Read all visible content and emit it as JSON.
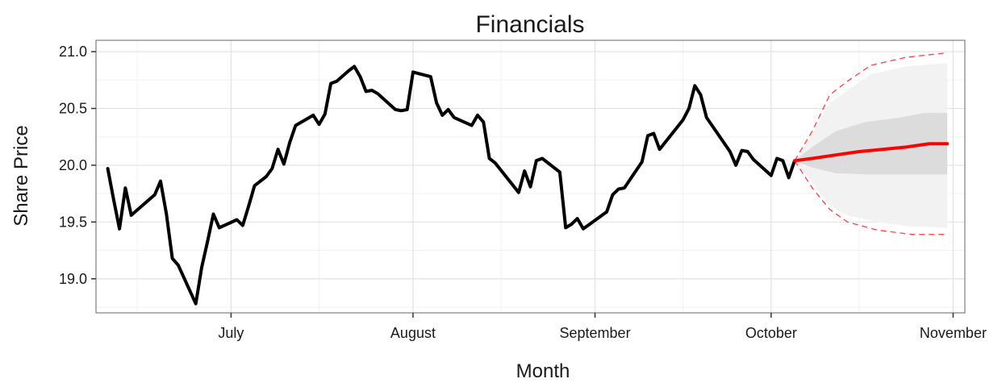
{
  "chart_data": {
    "type": "line",
    "title": "Financials",
    "xlabel": "Month",
    "ylabel": "Share Price",
    "ylim": [
      18.7,
      21.1
    ],
    "xlim": [
      "2015-06-08",
      "2015-11-03"
    ],
    "grid": true,
    "x_ticks": [
      {
        "date": "2015-07-01",
        "label": "July"
      },
      {
        "date": "2015-08-01",
        "label": "August"
      },
      {
        "date": "2015-09-01",
        "label": "September"
      },
      {
        "date": "2015-10-01",
        "label": "October"
      },
      {
        "date": "2015-11-01",
        "label": "November"
      }
    ],
    "y_ticks": [
      19.0,
      19.5,
      20.0,
      20.5,
      21.0
    ],
    "y_tick_labels": [
      "19.0",
      "19.5",
      "20.0",
      "20.5",
      "21.0"
    ],
    "series": [
      {
        "role": "history",
        "color": "#000000",
        "points": [
          [
            "2015-06-10",
            19.97
          ],
          [
            "2015-06-11",
            19.7
          ],
          [
            "2015-06-12",
            19.44
          ],
          [
            "2015-06-13",
            19.8
          ],
          [
            "2015-06-14",
            19.56
          ],
          [
            "2015-06-18",
            19.74
          ],
          [
            "2015-06-19",
            19.86
          ],
          [
            "2015-06-20",
            19.57
          ],
          [
            "2015-06-21",
            19.18
          ],
          [
            "2015-06-22",
            19.12
          ],
          [
            "2015-06-25",
            18.78
          ],
          [
            "2015-06-26",
            19.1
          ],
          [
            "2015-06-27",
            19.33
          ],
          [
            "2015-06-28",
            19.57
          ],
          [
            "2015-06-29",
            19.45
          ],
          [
            "2015-07-02",
            19.52
          ],
          [
            "2015-07-03",
            19.47
          ],
          [
            "2015-07-04",
            19.64
          ],
          [
            "2015-07-05",
            19.82
          ],
          [
            "2015-07-07",
            19.9
          ],
          [
            "2015-07-08",
            19.97
          ],
          [
            "2015-07-09",
            20.14
          ],
          [
            "2015-07-10",
            20.01
          ],
          [
            "2015-07-11",
            20.2
          ],
          [
            "2015-07-12",
            20.35
          ],
          [
            "2015-07-15",
            20.44
          ],
          [
            "2015-07-16",
            20.36
          ],
          [
            "2015-07-17",
            20.45
          ],
          [
            "2015-07-18",
            20.72
          ],
          [
            "2015-07-19",
            20.74
          ],
          [
            "2015-07-21",
            20.83
          ],
          [
            "2015-07-22",
            20.87
          ],
          [
            "2015-07-23",
            20.78
          ],
          [
            "2015-07-24",
            20.65
          ],
          [
            "2015-07-25",
            20.66
          ],
          [
            "2015-07-26",
            20.63
          ],
          [
            "2015-07-29",
            20.49
          ],
          [
            "2015-07-30",
            20.48
          ],
          [
            "2015-07-31",
            20.49
          ],
          [
            "2015-08-01",
            20.82
          ],
          [
            "2015-08-04",
            20.78
          ],
          [
            "2015-08-05",
            20.55
          ],
          [
            "2015-08-06",
            20.44
          ],
          [
            "2015-08-07",
            20.49
          ],
          [
            "2015-08-08",
            20.42
          ],
          [
            "2015-08-11",
            20.35
          ],
          [
            "2015-08-12",
            20.44
          ],
          [
            "2015-08-13",
            20.38
          ],
          [
            "2015-08-14",
            20.06
          ],
          [
            "2015-08-15",
            20.02
          ],
          [
            "2015-08-19",
            19.76
          ],
          [
            "2015-08-20",
            19.95
          ],
          [
            "2015-08-21",
            19.81
          ],
          [
            "2015-08-22",
            20.04
          ],
          [
            "2015-08-23",
            20.06
          ],
          [
            "2015-08-26",
            19.94
          ],
          [
            "2015-08-27",
            19.45
          ],
          [
            "2015-08-28",
            19.48
          ],
          [
            "2015-08-29",
            19.53
          ],
          [
            "2015-08-30",
            19.44
          ],
          [
            "2015-09-03",
            19.59
          ],
          [
            "2015-09-04",
            19.74
          ],
          [
            "2015-09-05",
            19.79
          ],
          [
            "2015-09-06",
            19.8
          ],
          [
            "2015-09-09",
            20.03
          ],
          [
            "2015-09-10",
            20.26
          ],
          [
            "2015-09-11",
            20.28
          ],
          [
            "2015-09-12",
            20.14
          ],
          [
            "2015-09-16",
            20.4
          ],
          [
            "2015-09-17",
            20.5
          ],
          [
            "2015-09-18",
            20.7
          ],
          [
            "2015-09-19",
            20.62
          ],
          [
            "2015-09-20",
            20.42
          ],
          [
            "2015-09-24",
            20.12
          ],
          [
            "2015-09-25",
            20.0
          ],
          [
            "2015-09-26",
            20.13
          ],
          [
            "2015-09-27",
            20.12
          ],
          [
            "2015-09-28",
            20.05
          ],
          [
            "2015-10-01",
            19.91
          ],
          [
            "2015-10-02",
            20.06
          ],
          [
            "2015-10-03",
            20.04
          ],
          [
            "2015-10-04",
            19.89
          ],
          [
            "2015-10-05",
            20.04
          ]
        ]
      },
      {
        "role": "forecast-mean",
        "color": "#ff0000",
        "points": [
          [
            "2015-10-05",
            20.04
          ],
          [
            "2015-10-08",
            20.06
          ],
          [
            "2015-10-12",
            20.09
          ],
          [
            "2015-10-16",
            20.12
          ],
          [
            "2015-10-20",
            20.14
          ],
          [
            "2015-10-24",
            20.16
          ],
          [
            "2015-10-28",
            20.19
          ],
          [
            "2015-10-31",
            20.19
          ]
        ]
      },
      {
        "role": "forecast-bounds",
        "color": "#ff4040",
        "upper": [
          [
            "2015-10-05",
            20.04
          ],
          [
            "2015-10-08",
            20.3
          ],
          [
            "2015-10-11",
            20.62
          ],
          [
            "2015-10-14",
            20.74
          ],
          [
            "2015-10-18",
            20.88
          ],
          [
            "2015-10-24",
            20.95
          ],
          [
            "2015-10-31",
            20.99
          ]
        ],
        "lower": [
          [
            "2015-10-05",
            20.04
          ],
          [
            "2015-10-08",
            19.8
          ],
          [
            "2015-10-11",
            19.61
          ],
          [
            "2015-10-14",
            19.5
          ],
          [
            "2015-10-19",
            19.43
          ],
          [
            "2015-10-25",
            19.39
          ],
          [
            "2015-10-31",
            19.39
          ]
        ]
      }
    ],
    "bands": [
      {
        "role": "outer",
        "color": "#f2f2f2",
        "upper": [
          [
            "2015-10-05",
            20.04
          ],
          [
            "2015-10-08",
            20.28
          ],
          [
            "2015-10-11",
            20.55
          ],
          [
            "2015-10-14",
            20.66
          ],
          [
            "2015-10-18",
            20.8
          ],
          [
            "2015-10-24",
            20.87
          ],
          [
            "2015-10-31",
            20.9
          ]
        ],
        "lower": [
          [
            "2015-10-05",
            20.04
          ],
          [
            "2015-10-08",
            19.85
          ],
          [
            "2015-10-11",
            19.64
          ],
          [
            "2015-10-14",
            19.56
          ],
          [
            "2015-10-19",
            19.5
          ],
          [
            "2015-10-25",
            19.46
          ],
          [
            "2015-10-31",
            19.45
          ]
        ]
      },
      {
        "role": "inner",
        "color": "#dcdcdc",
        "upper": [
          [
            "2015-10-05",
            20.04
          ],
          [
            "2015-10-08",
            20.16
          ],
          [
            "2015-10-12",
            20.3
          ],
          [
            "2015-10-17",
            20.38
          ],
          [
            "2015-10-23",
            20.42
          ],
          [
            "2015-10-27",
            20.46
          ],
          [
            "2015-10-31",
            20.46
          ]
        ],
        "lower": [
          [
            "2015-10-05",
            20.04
          ],
          [
            "2015-10-08",
            19.98
          ],
          [
            "2015-10-12",
            19.93
          ],
          [
            "2015-10-17",
            19.92
          ],
          [
            "2015-10-23",
            19.92
          ],
          [
            "2015-10-31",
            19.92
          ]
        ]
      }
    ]
  }
}
